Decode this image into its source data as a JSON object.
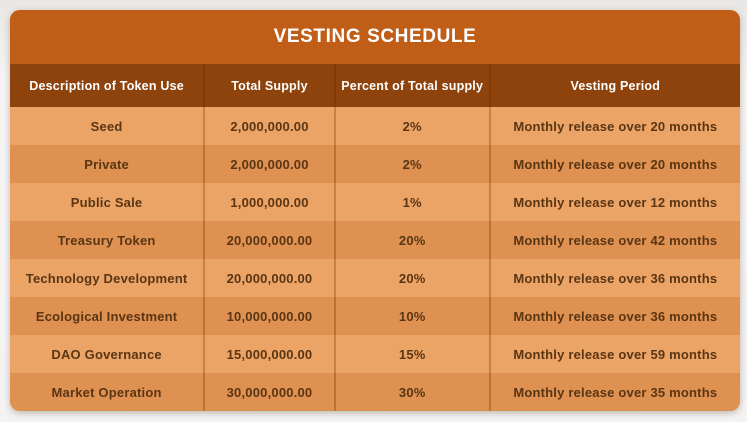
{
  "page": {
    "title": "VESTING SCHEDULE"
  },
  "table": {
    "headers": [
      "Description of Token Use",
      "Total Supply",
      "Percent of Total supply",
      "Vesting Period"
    ],
    "rows": [
      {
        "use": "Seed",
        "supply": "2,000,000.00",
        "percent": "2%",
        "vesting": "Monthly release over 20 months"
      },
      {
        "use": "Private",
        "supply": "2,000,000.00",
        "percent": "2%",
        "vesting": "Monthly release over 20 months"
      },
      {
        "use": "Public Sale",
        "supply": "1,000,000.00",
        "percent": "1%",
        "vesting": "Monthly release over 12 months"
      },
      {
        "use": "Treasury Token",
        "supply": "20,000,000.00",
        "percent": "20%",
        "vesting": "Monthly release over 42 months"
      },
      {
        "use": "Technology Development",
        "supply": "20,000,000.00",
        "percent": "20%",
        "vesting": "Monthly release over 36 months"
      },
      {
        "use": "Ecological Investment",
        "supply": "10,000,000.00",
        "percent": "10%",
        "vesting": "Monthly release over 36 months"
      },
      {
        "use": "DAO Governance",
        "supply": "15,000,000.00",
        "percent": "15%",
        "vesting": "Monthly release over 59 months"
      },
      {
        "use": "Market Operation",
        "supply": "30,000,000.00",
        "percent": "30%",
        "vesting": "Monthly release over 35 months"
      }
    ]
  },
  "colors": {
    "title_bg": "#C05E17",
    "header_bg": "#8F430C",
    "row_light": "#ECA466",
    "row_dark": "#DE9150",
    "body_text": "#5A3513",
    "header_text": "#FFFFFF",
    "divider": "rgba(90,40,5,0.28)",
    "page_bg": "#F4F3F2"
  },
  "chart_data": {
    "type": "table",
    "title": "VESTING SCHEDULE",
    "columns": [
      "Description of Token Use",
      "Total Supply",
      "Percent of Total supply",
      "Vesting Period"
    ],
    "rows": [
      [
        "Seed",
        2000000.0,
        "2%",
        "Monthly release over 20 months"
      ],
      [
        "Private",
        2000000.0,
        "2%",
        "Monthly release over 20 months"
      ],
      [
        "Public Sale",
        1000000.0,
        "1%",
        "Monthly release over 12 months"
      ],
      [
        "Treasury Token",
        20000000.0,
        "20%",
        "Monthly release over 42 months"
      ],
      [
        "Technology Development",
        20000000.0,
        "20%",
        "Monthly release over 36 months"
      ],
      [
        "Ecological Investment",
        10000000.0,
        "10%",
        "Monthly release over 36 months"
      ],
      [
        "DAO Governance",
        15000000.0,
        "15%",
        "Monthly release over 59 months"
      ],
      [
        "Market Operation",
        30000000.0,
        "30%",
        "Monthly release over 35 months"
      ]
    ],
    "layout": {
      "striped_rows": true,
      "all_cells_centered": true,
      "legend_position": "none"
    }
  }
}
